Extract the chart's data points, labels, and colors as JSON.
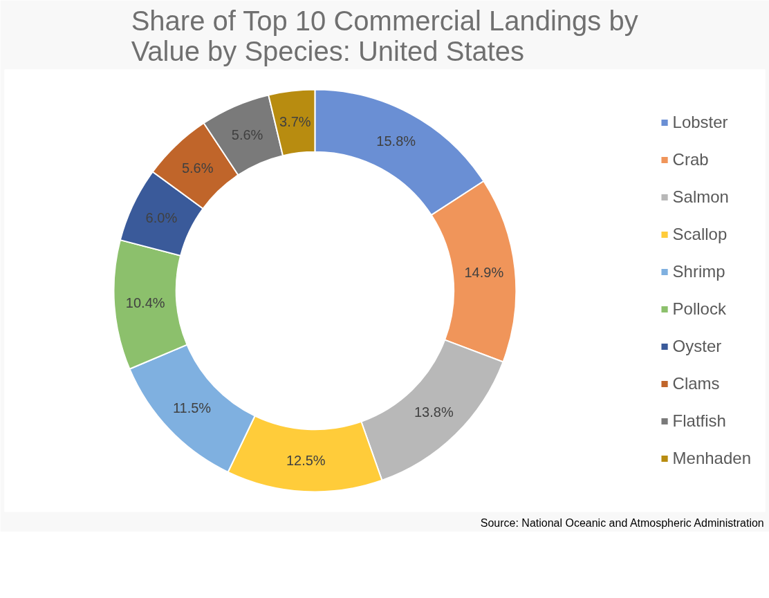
{
  "chart_data": {
    "type": "donut",
    "title": "Share of Top 10 Commercial Landings by Value by Species: United States",
    "categories": [
      "Lobster",
      "Crab",
      "Salmon",
      "Scallop",
      "Shrimp",
      "Pollock",
      "Oyster",
      "Clams",
      "Flatfish",
      "Menhaden"
    ],
    "values": [
      15.8,
      14.9,
      13.8,
      12.5,
      11.5,
      10.4,
      6.0,
      5.6,
      5.6,
      3.7
    ],
    "colors": [
      "#6a8fd4",
      "#f0955a",
      "#b8b8b8",
      "#ffcc3a",
      "#7fb0e0",
      "#8cc06c",
      "#3a5a9a",
      "#c0652a",
      "#7a7a7a",
      "#b88c10"
    ],
    "value_labels": [
      "15.8%",
      "14.9%",
      "13.8%",
      "12.5%",
      "11.5%",
      "10.4%",
      "6.0%",
      "5.6%",
      "5.6%",
      "3.7%"
    ],
    "data_labels": true,
    "legend": "right",
    "annotations": [
      "Source: National Oceanic and Atmospheric Administration"
    ]
  }
}
